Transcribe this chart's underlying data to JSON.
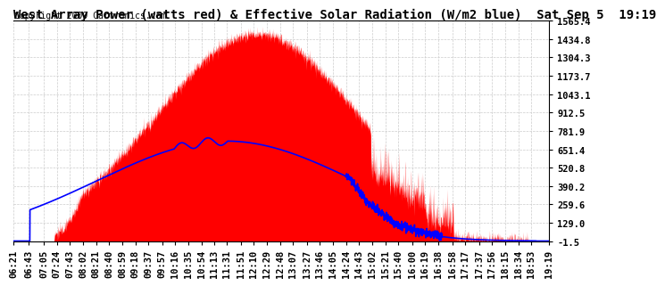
{
  "title": "West Array Power (watts red) & Effective Solar Radiation (W/m2 blue)  Sat Sep 5  19:19",
  "copyright": "Copyright 2009 Cartronics.com",
  "ylim": [
    -1.5,
    1565.4
  ],
  "yticks": [
    -1.5,
    129.0,
    259.6,
    390.2,
    520.8,
    651.4,
    781.9,
    912.5,
    1043.1,
    1173.7,
    1304.3,
    1434.8,
    1565.4
  ],
  "bg_color": "#ffffff",
  "grid_color": "#bbbbbb",
  "title_fontsize": 10,
  "copyright_fontsize": 7,
  "tick_label_fontsize": 7.5,
  "xtick_labels": [
    "06:21",
    "06:43",
    "07:05",
    "07:24",
    "07:43",
    "08:02",
    "08:21",
    "08:40",
    "08:59",
    "09:18",
    "09:37",
    "09:57",
    "10:16",
    "10:35",
    "10:54",
    "11:13",
    "11:31",
    "11:51",
    "12:10",
    "12:29",
    "12:48",
    "13:07",
    "13:27",
    "13:46",
    "14:05",
    "14:24",
    "14:43",
    "15:02",
    "15:21",
    "15:40",
    "16:00",
    "16:19",
    "16:38",
    "16:58",
    "17:17",
    "17:37",
    "17:56",
    "18:15",
    "18:34",
    "18:53",
    "19:19"
  ]
}
